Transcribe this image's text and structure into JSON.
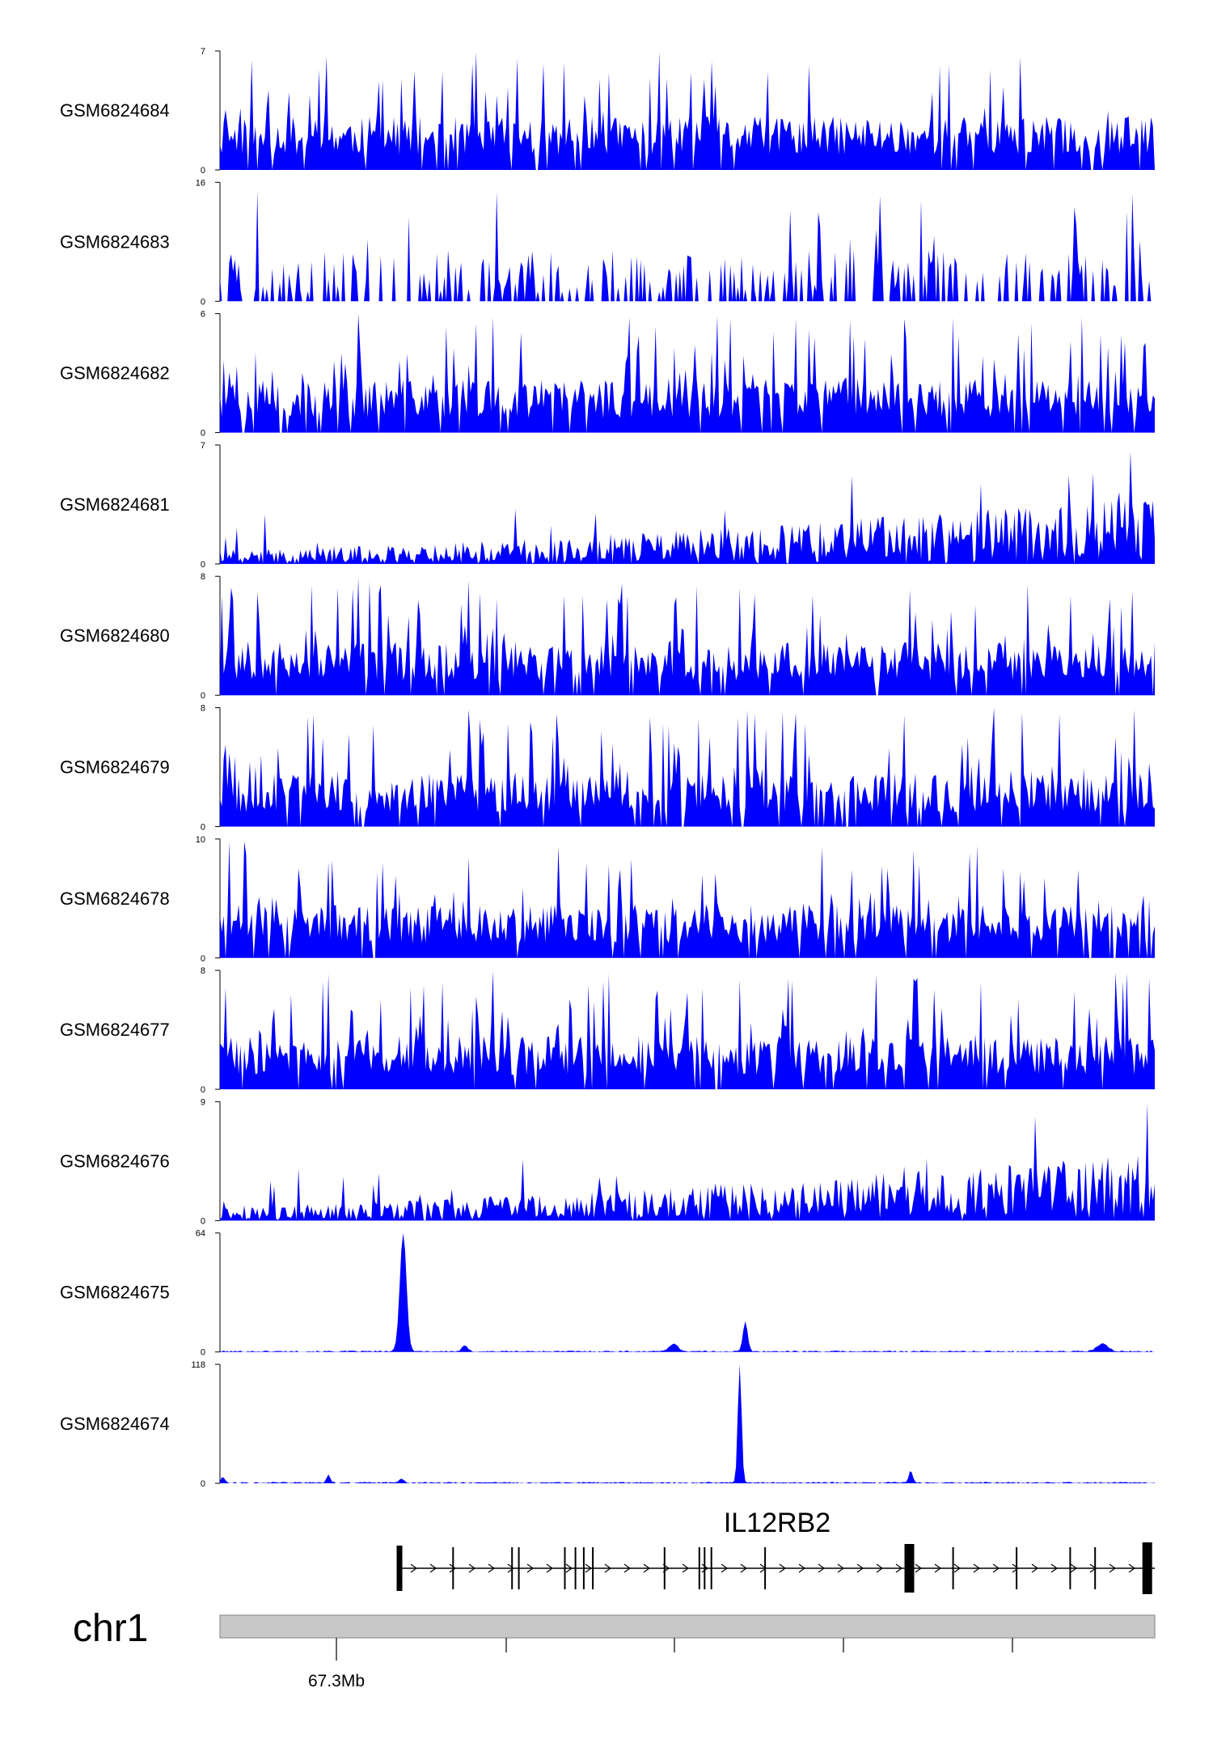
{
  "chart_data": {
    "type": "area",
    "color": "#0000ff",
    "chromosome": "chr1",
    "position_label": "67.3Mb",
    "gene": {
      "name": "IL12RB2",
      "strand": "+",
      "exons": [
        0.0,
        0.071,
        0.149,
        0.158,
        0.219,
        0.233,
        0.244,
        0.256,
        0.351,
        0.397,
        0.404,
        0.413,
        0.484,
        0.675,
        0.733,
        0.817,
        0.888,
        0.921,
        0.99
      ]
    },
    "tracks": [
      {
        "label": "GSM6824684",
        "ymax": 7,
        "profile": "uniform",
        "seed": 11
      },
      {
        "label": "GSM6824683",
        "ymax": 16,
        "profile": "sparse",
        "seed": 23
      },
      {
        "label": "GSM6824682",
        "ymax": 6,
        "profile": "uniform",
        "seed": 37
      },
      {
        "label": "GSM6824681",
        "ymax": 7,
        "profile": "rising",
        "seed": 41
      },
      {
        "label": "GSM6824680",
        "ymax": 8,
        "profile": "uniform",
        "seed": 53
      },
      {
        "label": "GSM6824679",
        "ymax": 8,
        "profile": "uniform",
        "seed": 67
      },
      {
        "label": "GSM6824678",
        "ymax": 10,
        "profile": "uniform",
        "seed": 71
      },
      {
        "label": "GSM6824677",
        "ymax": 8,
        "profile": "uniform",
        "seed": 83
      },
      {
        "label": "GSM6824676",
        "ymax": 9,
        "profile": "rising",
        "seed": 97
      },
      {
        "label": "GSM6824675",
        "ymax": 64,
        "profile": "peaks",
        "seed": 101,
        "peaks": [
          [
            0.196,
            64,
            0.0035
          ],
          [
            0.562,
            16,
            0.0025
          ],
          [
            0.485,
            4,
            0.005
          ],
          [
            0.262,
            3,
            0.003
          ],
          [
            0.944,
            4,
            0.006
          ]
        ]
      },
      {
        "label": "GSM6824674",
        "ymax": 118,
        "profile": "peaks",
        "seed": 113,
        "peaks": [
          [
            0.556,
            118,
            0.002
          ],
          [
            0.739,
            12,
            0.002
          ],
          [
            0.116,
            8,
            0.002
          ],
          [
            0.194,
            4,
            0.003
          ],
          [
            0.003,
            6,
            0.002
          ]
        ]
      }
    ]
  }
}
